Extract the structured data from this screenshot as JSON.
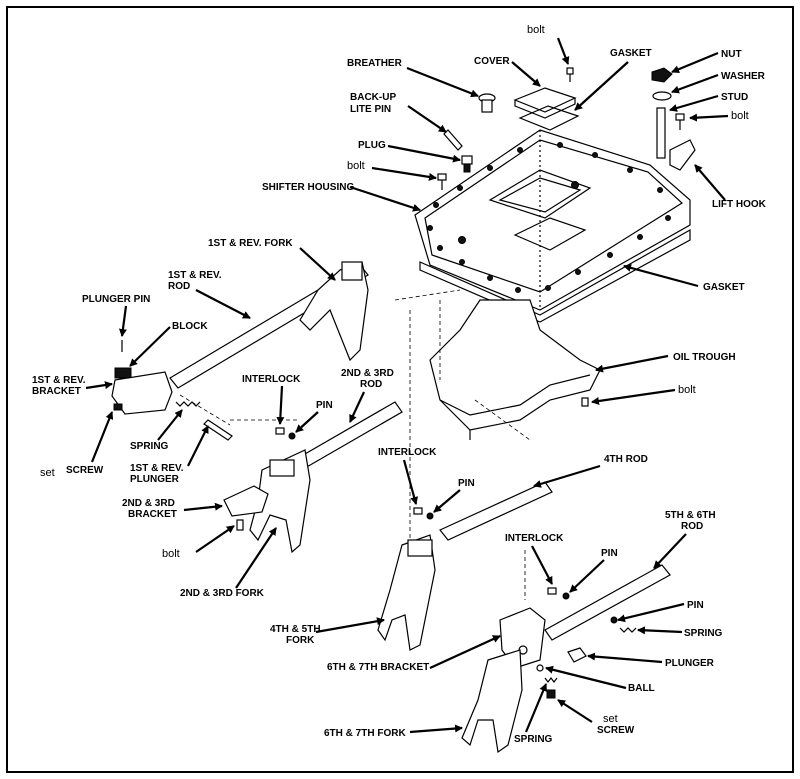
{
  "labels": {
    "bolt_top": "bolt",
    "cover": "COVER",
    "gasket_top": "GASKET",
    "nut": "NUT",
    "washer": "WASHER",
    "stud": "STUD",
    "bolt_stud": "bolt",
    "breather": "BREATHER",
    "backup_lite_pin_1": "BACK-UP",
    "backup_lite_pin_2": "LITE PIN",
    "plug": "PLUG",
    "bolt_plug": "bolt",
    "shifter_housing": "SHIFTER HOUSING",
    "lift_hook": "LIFT HOOK",
    "gasket_mid": "GASKET",
    "oil_trough": "OIL TROUGH",
    "bolt_trough": "bolt",
    "first_rev_fork": "1ST & REV. FORK",
    "first_rev_rod_1": "1ST & REV.",
    "first_rev_rod_2": "ROD",
    "plunger_pin": "PLUNGER PIN",
    "block": "BLOCK",
    "first_rev_bracket_1": "1ST & REV.",
    "first_rev_bracket_2": "BRACKET",
    "interlock_1": "INTERLOCK",
    "second_third_rod_1": "2ND & 3RD",
    "second_third_rod_2": "ROD",
    "pin_1": "PIN",
    "spring_1": "SPRING",
    "set_1": "set",
    "screw_1": "SCREW",
    "first_rev_plunger_1": "1ST & REV.",
    "first_rev_plunger_2": "PLUNGER",
    "interlock_2": "INTERLOCK",
    "pin_2": "PIN",
    "fourth_rod": "4TH ROD",
    "second_third_bracket_1": "2ND & 3RD",
    "second_third_bracket_2": "BRACKET",
    "bolt_bracket": "bolt",
    "second_third_fork": "2ND & 3RD FORK",
    "fifth_sixth_rod_1": "5TH & 6TH",
    "fifth_sixth_rod_2": "ROD",
    "interlock_3": "INTERLOCK",
    "pin_3": "PIN",
    "fourth_fifth_fork_1": "4TH & 5TH",
    "fourth_fifth_fork_2": "FORK",
    "pin_4": "PIN",
    "spring_2": "SPRING",
    "sixth_seventh_bracket": "6TH & 7TH BRACKET",
    "plunger": "PLUNGER",
    "ball": "BALL",
    "set_2": "set",
    "screw_2": "SCREW",
    "sixth_seventh_fork": "6TH & 7TH FORK",
    "spring_3": "SPRING"
  }
}
